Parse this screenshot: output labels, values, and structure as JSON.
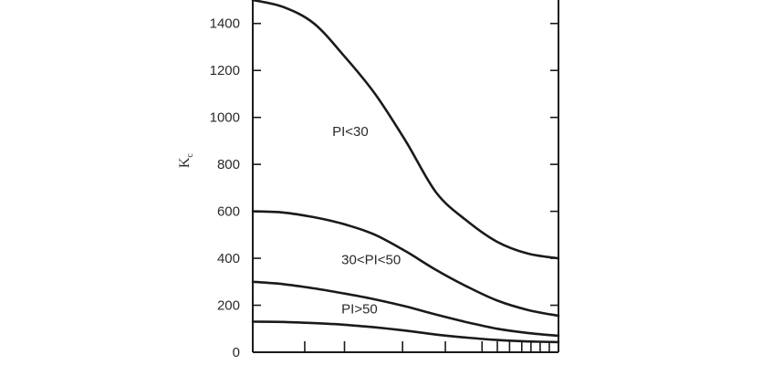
{
  "chart_data": {
    "type": "line",
    "ylabel": "K",
    "ylabel_subscript": "c",
    "ylim": [
      0,
      1500
    ],
    "yticks": [
      0,
      200,
      400,
      600,
      800,
      1000,
      1200,
      1400
    ],
    "ytick_labels": [
      "0",
      "200",
      "400",
      "600",
      "800",
      "1000",
      "1200",
      "1400"
    ],
    "xlim": [
      0,
      1
    ],
    "xticks": [
      0.17,
      0.3,
      0.49,
      0.63,
      0.75,
      0.8,
      0.84,
      0.88,
      0.91,
      0.94,
      0.97
    ],
    "grid": false,
    "series": [
      {
        "x": [
          0,
          0.1,
          0.2,
          0.3,
          0.4,
          0.5,
          0.6,
          0.7,
          0.8,
          0.9,
          1.0
        ],
        "values": [
          1500,
          1470,
          1400,
          1260,
          1100,
          900,
          680,
          560,
          470,
          420,
          400
        ]
      },
      {
        "x": [
          0,
          0.1,
          0.2,
          0.3,
          0.4,
          0.5,
          0.6,
          0.7,
          0.8,
          0.9,
          1.0
        ],
        "values": [
          600,
          595,
          575,
          545,
          500,
          430,
          350,
          280,
          220,
          180,
          155
        ]
      },
      {
        "x": [
          0,
          0.1,
          0.2,
          0.3,
          0.4,
          0.5,
          0.6,
          0.7,
          0.8,
          0.9,
          1.0
        ],
        "values": [
          300,
          290,
          272,
          250,
          225,
          195,
          160,
          128,
          100,
          82,
          70
        ]
      },
      {
        "x": [
          0,
          0.1,
          0.2,
          0.3,
          0.4,
          0.5,
          0.6,
          0.7,
          0.8,
          0.9,
          1.0
        ],
        "values": [
          130,
          129,
          124,
          117,
          106,
          92,
          75,
          62,
          52,
          46,
          43
        ]
      }
    ],
    "annotations": [
      {
        "text": "PI<30",
        "x": 0.26,
        "y": 940
      },
      {
        "text": "30<PI<50",
        "x": 0.29,
        "y": 395
      },
      {
        "text": "PI>50",
        "x": 0.29,
        "y": 185
      }
    ]
  }
}
